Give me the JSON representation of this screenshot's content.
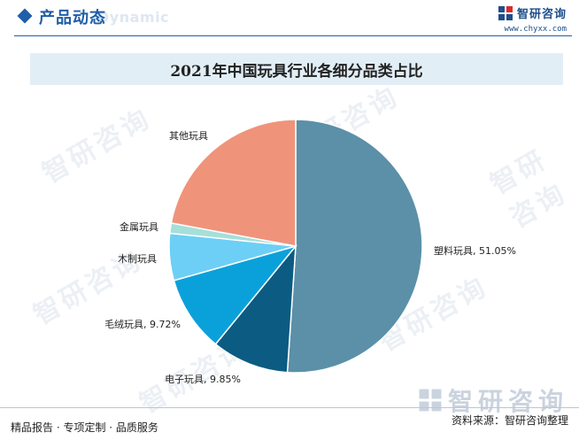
{
  "header": {
    "title": "产品动态",
    "ghost_text": "Dynamic",
    "brand_name": "智研咨询",
    "brand_url": "www.chyxx.com"
  },
  "chart_title": "2021年中国玩具行业各细分品类占比",
  "footer": {
    "left_text": "精品报告 · 专项定制 · 品质服务",
    "source_text": "资料来源：智研咨询整理",
    "logo_text": "智研咨询"
  },
  "watermark_text": "智研咨询",
  "colors": {
    "accent": "#1f5ea8",
    "slice_plastic": "#5b90a8",
    "slice_electronic": "#0b5b82",
    "slice_plush": "#0aa1db",
    "slice_wood": "#6dcff6",
    "slice_metal": "#a6dfd9",
    "slice_other": "#f0937b"
  },
  "chart_data": {
    "type": "pie",
    "title": "2021年中国玩具行业各细分品类占比",
    "slices": [
      {
        "label": "塑料玩具",
        "value": 51.05,
        "value_text": "51.05%",
        "color": "#5b90a8"
      },
      {
        "label": "电子玩具",
        "value": 9.85,
        "value_text": "9.85%",
        "color": "#0b5b82"
      },
      {
        "label": "毛绒玩具",
        "value": 9.72,
        "value_text": "9.72%",
        "color": "#0aa1db"
      },
      {
        "label": "木制玩具",
        "value": 6.0,
        "value_text": "",
        "color": "#6dcff6"
      },
      {
        "label": "金属玩具",
        "value": 1.3,
        "value_text": "",
        "color": "#a6dfd9"
      },
      {
        "label": "其他玩具",
        "value": 22.08,
        "value_text": "",
        "color": "#f0937b"
      }
    ]
  }
}
